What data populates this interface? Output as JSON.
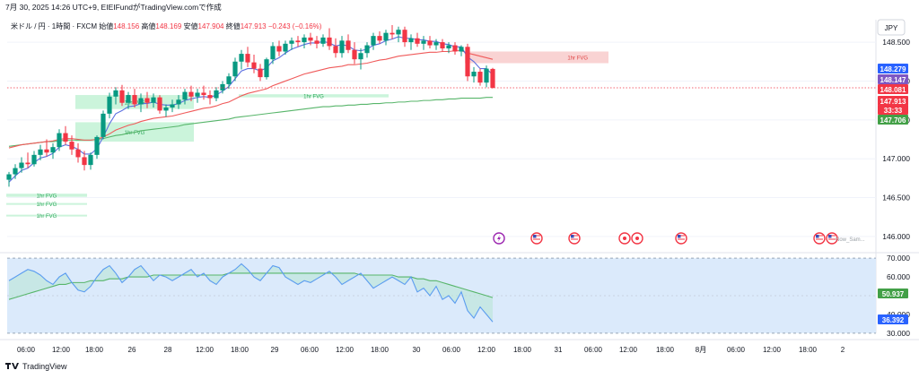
{
  "header": {
    "timestamp": "7月 30, 2025 14:26 UTC+9",
    "credit": "EIEIFundがTradingView.comで作成"
  },
  "legend": {
    "symbol": "米ドル / 円 · 1時間 · FXCM",
    "open_label": "始値",
    "open": "148.156",
    "high_label": "高値",
    "high": "148.169",
    "low_label": "安値",
    "low": "147.904",
    "close_label": "終値",
    "close": "147.913",
    "change": "−0.243 (−0.16%)"
  },
  "currency_button": "JPY",
  "footer": {
    "brand": "TradingView"
  },
  "colors": {
    "up": "#089981",
    "down": "#f23645",
    "ema_fast": "#5b6fe0",
    "ema_mid": "#f05a5a",
    "ema_slow": "#57b56a",
    "fvg_green": "#b9f0cf",
    "fvg_red": "#f7c4c4",
    "rsi": "#5b9cf0",
    "rsi_ma": "#57b56a"
  },
  "chart_data": [
    {
      "type": "candlestick",
      "title": "米ドル / 円 · 1時間 · FXCM",
      "x_ticks": [
        "06:00",
        "12:00",
        "18:00",
        "26",
        "28",
        "12:00",
        "18:00",
        "29",
        "06:00",
        "12:00",
        "18:00",
        "30",
        "06:00",
        "12:00",
        "18:00",
        "31",
        "06:00",
        "12:00",
        "18:00",
        "8月",
        "06:00",
        "12:00",
        "18:00",
        "2"
      ],
      "y_ticks": [
        "148.500",
        "148.000",
        "147.500",
        "147.000",
        "146.500",
        "146.000"
      ],
      "ylim": [
        145.93,
        148.72
      ],
      "candles": [
        {
          "o": 146.73,
          "h": 146.83,
          "l": 146.64,
          "c": 146.8
        },
        {
          "o": 146.8,
          "h": 146.93,
          "l": 146.74,
          "c": 146.88
        },
        {
          "o": 146.88,
          "h": 147.02,
          "l": 146.82,
          "c": 146.95
        },
        {
          "o": 146.95,
          "h": 147.08,
          "l": 146.88,
          "c": 146.93
        },
        {
          "o": 146.93,
          "h": 147.1,
          "l": 146.9,
          "c": 147.05
        },
        {
          "o": 147.05,
          "h": 147.18,
          "l": 146.98,
          "c": 147.12
        },
        {
          "o": 147.12,
          "h": 147.25,
          "l": 147.03,
          "c": 147.08
        },
        {
          "o": 147.08,
          "h": 147.2,
          "l": 147.0,
          "c": 147.15
        },
        {
          "o": 147.15,
          "h": 147.38,
          "l": 147.1,
          "c": 147.33
        },
        {
          "o": 147.33,
          "h": 147.42,
          "l": 147.18,
          "c": 147.22
        },
        {
          "o": 147.22,
          "h": 147.3,
          "l": 147.05,
          "c": 147.12
        },
        {
          "o": 147.12,
          "h": 147.2,
          "l": 146.95,
          "c": 147.02
        },
        {
          "o": 147.02,
          "h": 147.1,
          "l": 146.85,
          "c": 146.92
        },
        {
          "o": 146.92,
          "h": 147.08,
          "l": 146.86,
          "c": 147.05
        },
        {
          "o": 147.05,
          "h": 147.3,
          "l": 147.0,
          "c": 147.28
        },
        {
          "o": 147.28,
          "h": 147.62,
          "l": 147.25,
          "c": 147.58
        },
        {
          "o": 147.58,
          "h": 147.85,
          "l": 147.52,
          "c": 147.8
        },
        {
          "o": 147.8,
          "h": 147.92,
          "l": 147.7,
          "c": 147.88
        },
        {
          "o": 147.88,
          "h": 147.95,
          "l": 147.68,
          "c": 147.72
        },
        {
          "o": 147.72,
          "h": 147.86,
          "l": 147.64,
          "c": 147.82
        },
        {
          "o": 147.82,
          "h": 147.9,
          "l": 147.66,
          "c": 147.7
        },
        {
          "o": 147.7,
          "h": 147.84,
          "l": 147.6,
          "c": 147.78
        },
        {
          "o": 147.78,
          "h": 147.86,
          "l": 147.65,
          "c": 147.72
        },
        {
          "o": 147.72,
          "h": 147.84,
          "l": 147.66,
          "c": 147.79
        },
        {
          "o": 147.79,
          "h": 147.82,
          "l": 147.58,
          "c": 147.62
        },
        {
          "o": 147.62,
          "h": 147.7,
          "l": 147.54,
          "c": 147.66
        },
        {
          "o": 147.66,
          "h": 147.76,
          "l": 147.6,
          "c": 147.7
        },
        {
          "o": 147.7,
          "h": 147.82,
          "l": 147.64,
          "c": 147.76
        },
        {
          "o": 147.76,
          "h": 147.9,
          "l": 147.7,
          "c": 147.86
        },
        {
          "o": 147.86,
          "h": 147.94,
          "l": 147.74,
          "c": 147.8
        },
        {
          "o": 147.8,
          "h": 147.9,
          "l": 147.72,
          "c": 147.85
        },
        {
          "o": 147.85,
          "h": 147.94,
          "l": 147.76,
          "c": 147.82
        },
        {
          "o": 147.82,
          "h": 147.88,
          "l": 147.7,
          "c": 147.78
        },
        {
          "o": 147.78,
          "h": 147.92,
          "l": 147.74,
          "c": 147.88
        },
        {
          "o": 147.88,
          "h": 148.0,
          "l": 147.84,
          "c": 147.96
        },
        {
          "o": 147.96,
          "h": 148.1,
          "l": 147.9,
          "c": 148.06
        },
        {
          "o": 148.06,
          "h": 148.3,
          "l": 148.0,
          "c": 148.25
        },
        {
          "o": 148.25,
          "h": 148.4,
          "l": 148.15,
          "c": 148.35
        },
        {
          "o": 148.35,
          "h": 148.44,
          "l": 148.18,
          "c": 148.24
        },
        {
          "o": 148.24,
          "h": 148.34,
          "l": 148.1,
          "c": 148.16
        },
        {
          "o": 148.16,
          "h": 148.22,
          "l": 148.0,
          "c": 148.05
        },
        {
          "o": 148.05,
          "h": 148.3,
          "l": 148.02,
          "c": 148.28
        },
        {
          "o": 148.28,
          "h": 148.5,
          "l": 148.22,
          "c": 148.45
        },
        {
          "o": 148.45,
          "h": 148.52,
          "l": 148.32,
          "c": 148.38
        },
        {
          "o": 148.38,
          "h": 148.52,
          "l": 148.34,
          "c": 148.48
        },
        {
          "o": 148.48,
          "h": 148.56,
          "l": 148.4,
          "c": 148.52
        },
        {
          "o": 148.52,
          "h": 148.58,
          "l": 148.44,
          "c": 148.5
        },
        {
          "o": 148.5,
          "h": 148.6,
          "l": 148.42,
          "c": 148.56
        },
        {
          "o": 148.56,
          "h": 148.62,
          "l": 148.46,
          "c": 148.52
        },
        {
          "o": 148.52,
          "h": 148.58,
          "l": 148.42,
          "c": 148.48
        },
        {
          "o": 148.48,
          "h": 148.6,
          "l": 148.44,
          "c": 148.56
        },
        {
          "o": 148.56,
          "h": 148.68,
          "l": 148.4,
          "c": 148.45
        },
        {
          "o": 148.45,
          "h": 148.55,
          "l": 148.3,
          "c": 148.36
        },
        {
          "o": 148.36,
          "h": 148.58,
          "l": 148.3,
          "c": 148.52
        },
        {
          "o": 148.52,
          "h": 148.6,
          "l": 148.36,
          "c": 148.4
        },
        {
          "o": 148.4,
          "h": 148.5,
          "l": 148.22,
          "c": 148.28
        },
        {
          "o": 148.28,
          "h": 148.42,
          "l": 148.15,
          "c": 148.36
        },
        {
          "o": 148.36,
          "h": 148.5,
          "l": 148.3,
          "c": 148.46
        },
        {
          "o": 148.46,
          "h": 148.62,
          "l": 148.4,
          "c": 148.58
        },
        {
          "o": 148.58,
          "h": 148.64,
          "l": 148.48,
          "c": 148.52
        },
        {
          "o": 148.52,
          "h": 148.66,
          "l": 148.46,
          "c": 148.62
        },
        {
          "o": 148.62,
          "h": 148.72,
          "l": 148.54,
          "c": 148.6
        },
        {
          "o": 148.6,
          "h": 148.7,
          "l": 148.5,
          "c": 148.66
        },
        {
          "o": 148.66,
          "h": 148.7,
          "l": 148.44,
          "c": 148.5
        },
        {
          "o": 148.5,
          "h": 148.6,
          "l": 148.4,
          "c": 148.55
        },
        {
          "o": 148.55,
          "h": 148.62,
          "l": 148.44,
          "c": 148.48
        },
        {
          "o": 148.48,
          "h": 148.58,
          "l": 148.4,
          "c": 148.52
        },
        {
          "o": 148.52,
          "h": 148.58,
          "l": 148.42,
          "c": 148.46
        },
        {
          "o": 148.46,
          "h": 148.54,
          "l": 148.4,
          "c": 148.5
        },
        {
          "o": 148.5,
          "h": 148.54,
          "l": 148.38,
          "c": 148.42
        },
        {
          "o": 148.42,
          "h": 148.5,
          "l": 148.36,
          "c": 148.46
        },
        {
          "o": 148.46,
          "h": 148.5,
          "l": 148.34,
          "c": 148.38
        },
        {
          "o": 148.38,
          "h": 148.46,
          "l": 148.32,
          "c": 148.44
        },
        {
          "o": 148.44,
          "h": 148.48,
          "l": 148.0,
          "c": 148.06
        },
        {
          "o": 148.06,
          "h": 148.18,
          "l": 147.98,
          "c": 148.12
        },
        {
          "o": 148.12,
          "h": 148.16,
          "l": 147.94,
          "c": 147.98
        },
        {
          "o": 147.98,
          "h": 148.2,
          "l": 147.92,
          "c": 148.16
        },
        {
          "o": 148.156,
          "h": 148.169,
          "l": 147.904,
          "c": 147.913
        }
      ],
      "ema_fast": [
        146.7,
        146.78,
        146.85,
        146.88,
        146.95,
        147.01,
        147.03,
        147.07,
        147.15,
        147.18,
        147.16,
        147.12,
        147.06,
        147.06,
        147.13,
        147.28,
        147.45,
        147.58,
        147.62,
        147.67,
        147.68,
        147.71,
        147.71,
        147.73,
        147.7,
        147.69,
        147.69,
        147.71,
        147.75,
        147.77,
        147.79,
        147.8,
        147.79,
        147.82,
        147.87,
        147.93,
        148.03,
        148.13,
        148.16,
        148.16,
        148.13,
        148.17,
        148.26,
        148.3,
        148.36,
        148.41,
        148.44,
        148.47,
        148.49,
        148.49,
        148.51,
        148.49,
        148.45,
        148.47,
        148.45,
        148.4,
        148.39,
        148.41,
        148.46,
        148.48,
        148.52,
        148.54,
        148.57,
        148.55,
        148.55,
        148.53,
        148.53,
        148.51,
        148.51,
        148.48,
        148.47,
        148.44,
        148.44,
        148.31,
        148.25,
        148.16,
        148.16,
        148.08
      ],
      "ema_mid": [
        147.14,
        147.16,
        147.18,
        147.19,
        147.2,
        147.21,
        147.22,
        147.23,
        147.25,
        147.26,
        147.26,
        147.25,
        147.24,
        147.24,
        147.25,
        147.28,
        147.32,
        147.37,
        147.4,
        147.43,
        147.45,
        147.48,
        147.5,
        147.52,
        147.53,
        147.54,
        147.55,
        147.57,
        147.59,
        147.61,
        147.63,
        147.65,
        147.66,
        147.68,
        147.71,
        147.73,
        147.77,
        147.81,
        147.84,
        147.86,
        147.88,
        147.9,
        147.94,
        147.97,
        148.0,
        148.03,
        148.06,
        148.09,
        148.11,
        148.13,
        148.15,
        148.17,
        148.18,
        148.19,
        148.21,
        148.21,
        148.22,
        148.23,
        148.25,
        148.27,
        148.28,
        148.3,
        148.32,
        148.33,
        148.34,
        148.35,
        148.36,
        148.37,
        148.37,
        148.38,
        148.38,
        148.39,
        148.39,
        148.36,
        148.34,
        148.32,
        148.3,
        148.28
      ],
      "ema_slow": [
        147.16,
        147.17,
        147.18,
        147.19,
        147.2,
        147.21,
        147.22,
        147.22,
        147.23,
        147.24,
        147.24,
        147.24,
        147.24,
        147.24,
        147.25,
        147.26,
        147.28,
        147.3,
        147.31,
        147.33,
        147.34,
        147.36,
        147.37,
        147.38,
        147.39,
        147.4,
        147.41,
        147.42,
        147.44,
        147.45,
        147.46,
        147.47,
        147.48,
        147.49,
        147.5,
        147.51,
        147.53,
        147.54,
        147.55,
        147.56,
        147.57,
        147.58,
        147.59,
        147.6,
        147.61,
        147.62,
        147.63,
        147.64,
        147.65,
        147.66,
        147.67,
        147.67,
        147.68,
        147.68,
        147.69,
        147.69,
        147.7,
        147.7,
        147.71,
        147.71,
        147.72,
        147.72,
        147.73,
        147.73,
        147.74,
        147.74,
        147.75,
        147.75,
        147.76,
        147.76,
        147.77,
        147.77,
        147.78,
        147.78,
        147.78,
        147.78,
        147.79,
        147.79
      ],
      "fvg_zones": [
        {
          "label": "1hr FVG",
          "start": 11,
          "end": 29,
          "top": 147.82,
          "bottom": 147.64,
          "kind": "bull"
        },
        {
          "label": "1hr FVG",
          "start": 11,
          "end": 29,
          "top": 147.47,
          "bottom": 147.22,
          "kind": "bull"
        },
        {
          "label": "1hr FVG",
          "start": 37,
          "end": 60,
          "top": 147.83,
          "bottom": 147.79,
          "kind": "bull"
        },
        {
          "label": "1hr FVG",
          "start": 0,
          "end": 12,
          "top": 146.55,
          "bottom": 146.51,
          "kind": "bull"
        },
        {
          "label": "1hr FVG",
          "start": 0,
          "end": 12,
          "top": 146.43,
          "bottom": 146.41,
          "kind": "bull"
        },
        {
          "label": "1hr FVG",
          "start": 0,
          "end": 12,
          "top": 146.28,
          "bottom": 146.26,
          "kind": "bull"
        },
        {
          "label": "1hr FVG",
          "start": 73,
          "end": 95,
          "top": 148.38,
          "bottom": 148.23,
          "kind": "bear"
        }
      ],
      "price_tags": [
        {
          "value": "148.279",
          "color": "#2962ff"
        },
        {
          "value": "148.147",
          "color": "#7e57c2"
        },
        {
          "value": "148.081",
          "color": "#f23645"
        },
        {
          "value": "147.913",
          "color": "#f23645"
        },
        {
          "value": "33:33",
          "color": "#f23645"
        },
        {
          "value": "147.706",
          "color": "#43a047"
        }
      ],
      "event_markers": [
        {
          "bar": 78,
          "icon": "lightning-icon"
        },
        {
          "bar": 84,
          "icon": "us-flag-icon"
        },
        {
          "bar": 90,
          "icon": "us-flag-icon"
        },
        {
          "bar": 98,
          "icon": "event-icon"
        },
        {
          "bar": 100,
          "icon": "event-icon"
        },
        {
          "bar": 107,
          "icon": "us-flag-icon"
        },
        {
          "bar": 129,
          "icon": "us-flag-icon"
        },
        {
          "bar": 131,
          "icon": "us-flag-icon"
        }
      ],
      "event_note": "Now_Sam..."
    },
    {
      "type": "line",
      "title": "RSI",
      "y_ticks": [
        "70.000",
        "60.000",
        "40.000",
        "30.000"
      ],
      "ylim": [
        28,
        72
      ],
      "band": [
        30,
        70
      ],
      "rsi": [
        58,
        60,
        62,
        64,
        63,
        61,
        58,
        56,
        60,
        62,
        57,
        53,
        52,
        55,
        60,
        64,
        66,
        62,
        57,
        60,
        64,
        66,
        62,
        58,
        61,
        60,
        58,
        60,
        62,
        64,
        60,
        62,
        58,
        56,
        60,
        62,
        64,
        67,
        64,
        60,
        58,
        62,
        66,
        65,
        60,
        58,
        56,
        58,
        57,
        59,
        61,
        63,
        60,
        56,
        58,
        60,
        62,
        58,
        54,
        56,
        58,
        60,
        58,
        56,
        60,
        52,
        54,
        50,
        55,
        48,
        50,
        46,
        52,
        42,
        38,
        44,
        40,
        36
      ],
      "rsi_ma": [
        48,
        49,
        50,
        51,
        52,
        53,
        54,
        55,
        56,
        56,
        57,
        57,
        57,
        58,
        58,
        58,
        59,
        59,
        59,
        60,
        60,
        60,
        60,
        61,
        61,
        61,
        61,
        61,
        61,
        61,
        61,
        61,
        61,
        61,
        61,
        62,
        62,
        62,
        62,
        62,
        62,
        62,
        62,
        62,
        62,
        62,
        62,
        62,
        62,
        62,
        62,
        62,
        62,
        62,
        62,
        62,
        61,
        61,
        61,
        61,
        61,
        61,
        60,
        60,
        60,
        59,
        59,
        58,
        58,
        57,
        56,
        55,
        54,
        53,
        52,
        51,
        50,
        49
      ],
      "tags": [
        {
          "value": "50.937",
          "color": "#43a047"
        },
        {
          "value": "36.392",
          "color": "#2962ff"
        }
      ]
    }
  ]
}
